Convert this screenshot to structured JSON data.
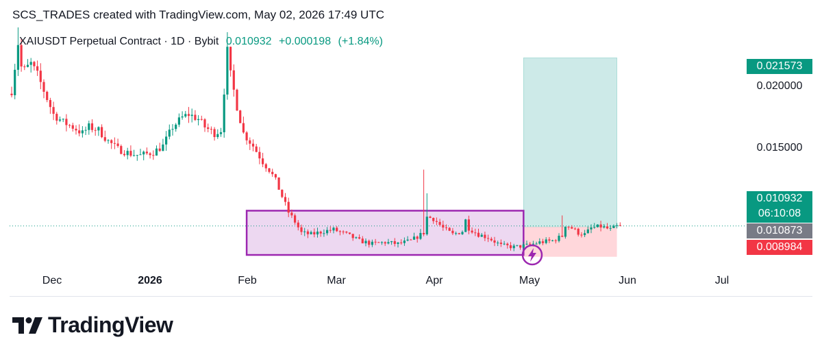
{
  "header": {
    "caption": "SCS_TRADES created with TradingView.com, May 02, 2026 17:49 UTC"
  },
  "legend": {
    "symbol": "XAIUSDT Perpetual Contract · 1D · Bybit",
    "last": "0.010932",
    "change": "+0.000198",
    "change_pct": "(+1.84%)"
  },
  "colors": {
    "up": "#089981",
    "down": "#f23645",
    "box_border": "#9c27b0",
    "box_fill": "#e1bee7",
    "target_fill": "#b2dfdb",
    "stop_fill": "#ffcdd2",
    "grey_tag": "#787b86"
  },
  "price_axis": {
    "labels": [
      "0.020000",
      "0.015000"
    ],
    "tags": {
      "target": "0.021573",
      "current": "0.010932",
      "countdown": "06:10:08",
      "entry": "0.010873",
      "stop": "0.008984"
    }
  },
  "time_axis": {
    "labels": [
      {
        "text": "Dec",
        "bold": false
      },
      {
        "text": "2026",
        "bold": true
      },
      {
        "text": "Feb",
        "bold": false
      },
      {
        "text": "Mar",
        "bold": false
      },
      {
        "text": "Apr",
        "bold": false
      },
      {
        "text": "May",
        "bold": false
      },
      {
        "text": "Jun",
        "bold": false
      },
      {
        "text": "Jul",
        "bold": false
      }
    ]
  },
  "chart_data": {
    "type": "candlestick",
    "start": "2025-11-24",
    "ylim": [
      0.0065,
      0.0235
    ],
    "current_price": 0.010932,
    "range_box": {
      "from": "2026-02-05",
      "to": "2026-05-02",
      "top": 0.0119,
      "bottom": 0.0091
    },
    "position": {
      "entry": 0.010873,
      "target": 0.021573,
      "stop": 0.008984,
      "from": "2026-05-02",
      "to": "2026-05-31"
    },
    "close_path": [
      [
        0,
        0.0195
      ],
      [
        2,
        0.0225
      ],
      [
        3,
        0.021
      ],
      [
        4,
        0.0208
      ],
      [
        6,
        0.0212
      ],
      [
        8,
        0.0205
      ],
      [
        10,
        0.0195
      ],
      [
        13,
        0.018
      ],
      [
        16,
        0.0175
      ],
      [
        19,
        0.0172
      ],
      [
        22,
        0.0168
      ],
      [
        24,
        0.0172
      ],
      [
        27,
        0.017
      ],
      [
        30,
        0.0163
      ],
      [
        33,
        0.0158
      ],
      [
        37,
        0.0155
      ],
      [
        40,
        0.0154
      ],
      [
        44,
        0.0156
      ],
      [
        47,
        0.016
      ],
      [
        50,
        0.0172
      ],
      [
        53,
        0.0178
      ],
      [
        55,
        0.018
      ],
      [
        58,
        0.0177
      ],
      [
        60,
        0.0172
      ],
      [
        63,
        0.0168
      ],
      [
        65,
        0.017
      ],
      [
        67,
        0.022
      ],
      [
        68,
        0.0205
      ],
      [
        70,
        0.0185
      ],
      [
        72,
        0.0168
      ],
      [
        75,
        0.016
      ],
      [
        78,
        0.015
      ],
      [
        80,
        0.0145
      ],
      [
        82,
        0.0138
      ],
      [
        84,
        0.0128
      ],
      [
        86,
        0.0118
      ],
      [
        88,
        0.0112
      ],
      [
        90,
        0.0105
      ],
      [
        93,
        0.0104
      ],
      [
        97,
        0.0106
      ],
      [
        100,
        0.0107
      ],
      [
        104,
        0.0104
      ],
      [
        108,
        0.01
      ],
      [
        112,
        0.0098
      ],
      [
        116,
        0.0099
      ],
      [
        120,
        0.0098
      ],
      [
        124,
        0.01
      ],
      [
        128,
        0.0105
      ],
      [
        129,
        0.0115
      ],
      [
        131,
        0.0114
      ],
      [
        134,
        0.0108
      ],
      [
        137,
        0.0104
      ],
      [
        140,
        0.0106
      ],
      [
        141,
        0.0113
      ],
      [
        142,
        0.0108
      ],
      [
        145,
        0.0104
      ],
      [
        148,
        0.0102
      ],
      [
        152,
        0.0097
      ],
      [
        156,
        0.0096
      ],
      [
        160,
        0.0097
      ],
      [
        164,
        0.0099
      ],
      [
        168,
        0.01
      ],
      [
        171,
        0.0103
      ],
      [
        172,
        0.011
      ],
      [
        174,
        0.0108
      ],
      [
        176,
        0.0105
      ],
      [
        178,
        0.0104
      ],
      [
        180,
        0.0108
      ],
      [
        183,
        0.0109
      ],
      [
        186,
        0.0107
      ],
      [
        189,
        0.011
      ]
    ],
    "spikes": [
      [
        2,
        0.0235
      ],
      [
        67,
        0.0232
      ],
      [
        128,
        0.0145
      ],
      [
        129,
        0.013
      ],
      [
        171,
        0.0116
      ]
    ]
  }
}
